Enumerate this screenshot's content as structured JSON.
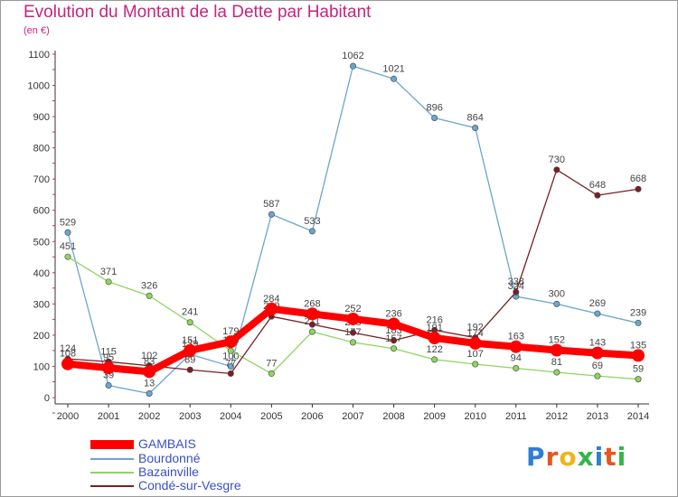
{
  "title": "Evolution du Montant de la Dette par Habitant",
  "unit": "(en €)",
  "logo": "Proxiti",
  "chart_data": {
    "type": "line",
    "x": [
      2000,
      2001,
      2002,
      2003,
      2004,
      2005,
      2006,
      2007,
      2008,
      2009,
      2010,
      2011,
      2012,
      2013,
      2014
    ],
    "ylim": [
      0,
      1100
    ],
    "yticks": [
      0,
      100,
      200,
      300,
      400,
      500,
      600,
      700,
      800,
      900,
      1000,
      1100
    ],
    "grid": false,
    "legend_position": "bottom-left",
    "series": [
      {
        "name": "Bourdonné",
        "color": "#6aa6cf",
        "values": [
          529,
          39,
          13,
          139,
          100,
          587,
          533,
          1062,
          1021,
          896,
          864,
          324,
          300,
          269,
          239
        ]
      },
      {
        "name": "Bazainville",
        "color": "#8fd45f",
        "values": [
          451,
          371,
          326,
          241,
          150,
          77,
          211,
          177,
          157,
          122,
          107,
          94,
          81,
          69,
          59
        ]
      },
      {
        "name": "Condé-sur-Vesgre",
        "color": "#7a1f24",
        "values": [
          124,
          115,
          102,
          89,
          77,
          260,
          234,
          208,
          183,
          216,
          192,
          338,
          730,
          648,
          668
        ]
      },
      {
        "name": "GAMBAIS",
        "color": "#ff0000",
        "values": [
          108,
          95,
          83,
          151,
          179,
          284,
          268,
          252,
          236,
          191,
          174,
          163,
          152,
          143,
          135
        ]
      }
    ]
  }
}
